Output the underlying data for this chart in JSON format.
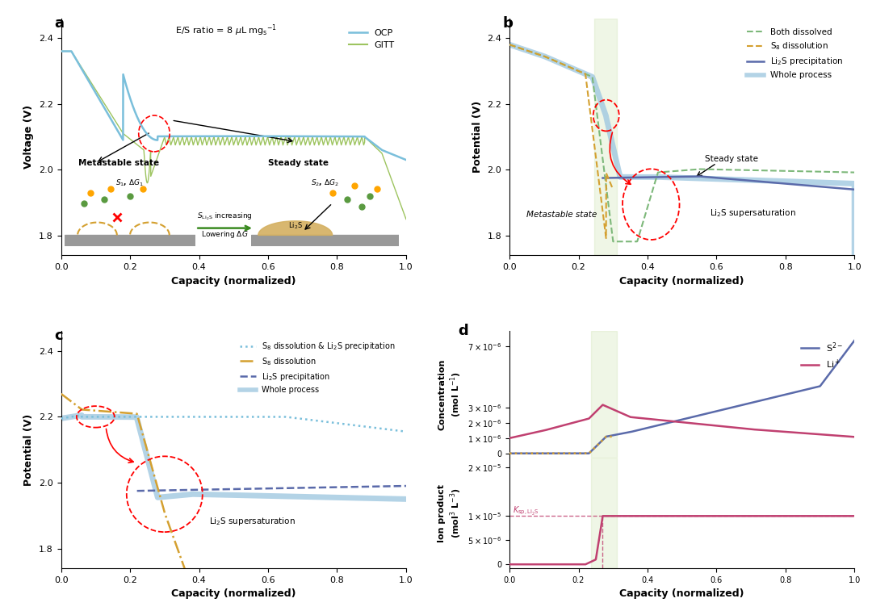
{
  "colors": {
    "ocp_blue": "#7abfdb",
    "gitt_green": "#9dc45f",
    "both_dissolved_green": "#7db87a",
    "s8_dissolution_orange": "#d4a030",
    "li2s_precip_blue": "#5a6aaa",
    "whole_process_lightblue": "#a0c8e0",
    "s2minus_blue": "#5a6aaa",
    "s2minus_orange": "#d4a030",
    "liplus_pink": "#c04070",
    "ksp_pink": "#c04070",
    "red_circle": "#cc2222",
    "green_highlight": "#d4e8b0"
  },
  "panel_a": {
    "yticks": [
      1.8,
      2.0,
      2.2,
      2.4
    ],
    "xticks": [
      0.0,
      0.2,
      0.4,
      0.6,
      0.8,
      1.0
    ],
    "ylim": [
      1.74,
      2.46
    ],
    "xlabel": "Capacity (normalized)",
    "ylabel": "Voltage (V)"
  },
  "panel_b": {
    "yticks": [
      1.8,
      2.0,
      2.2,
      2.4
    ],
    "xticks": [
      0.0,
      0.2,
      0.4,
      0.6,
      0.8,
      1.0
    ],
    "ylim": [
      1.74,
      2.46
    ],
    "xlabel": "Capacity (normalized)",
    "ylabel": "Potential (V)"
  },
  "panel_c": {
    "yticks": [
      1.8,
      2.0,
      2.2,
      2.4
    ],
    "xticks": [
      0.0,
      0.2,
      0.4,
      0.6,
      0.8,
      1.0
    ],
    "ylim": [
      1.74,
      2.46
    ],
    "xlabel": "Capacity (normalized)",
    "ylabel": "Potential (V)"
  },
  "panel_d": {
    "xticks": [
      0.0,
      0.2,
      0.4,
      0.6,
      0.8,
      1.0
    ],
    "xlabel": "Capacity (normalized)"
  }
}
